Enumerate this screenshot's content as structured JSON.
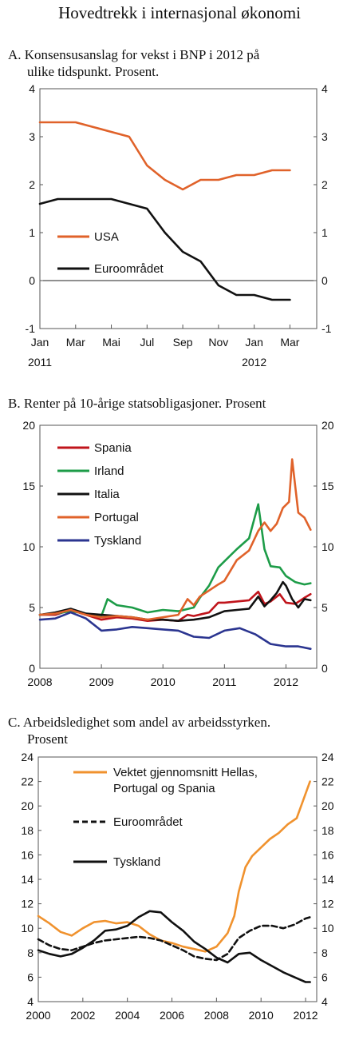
{
  "title": "Hovedtrekk i internasjonal økonomi",
  "chart_data": [
    {
      "id": "A",
      "type": "line",
      "title_lines": [
        "A.  Konsensusanslag for vekst i BNP i 2012 på",
        "ulike tidspunkt. Prosent."
      ],
      "ylim": [
        -1,
        4
      ],
      "yticks": [
        -1,
        0,
        1,
        2,
        3,
        4
      ],
      "x_ticks": [
        {
          "label": "Jan",
          "x": 0
        },
        {
          "label": "Mar",
          "x": 2
        },
        {
          "label": "Mai",
          "x": 4
        },
        {
          "label": "Jul",
          "x": 6
        },
        {
          "label": "Sep",
          "x": 8
        },
        {
          "label": "Nov",
          "x": 10
        },
        {
          "label": "Jan",
          "x": 12
        },
        {
          "label": "Mar",
          "x": 14
        }
      ],
      "x_year_labels": [
        {
          "label": "2011",
          "x": 0
        },
        {
          "label": "2012",
          "x": 12
        }
      ],
      "xlim": [
        0,
        15.5
      ],
      "legend_placement": "left-middle",
      "series": [
        {
          "name": "USA",
          "color": "#e0622a",
          "x": [
            0,
            1,
            2,
            3,
            4,
            5,
            6,
            7,
            8,
            9,
            10,
            11,
            12,
            13,
            14,
            15
          ],
          "values": [
            3.3,
            3.3,
            3.3,
            3.2,
            3.1,
            3.0,
            2.4,
            2.1,
            1.9,
            2.1,
            2.1,
            2.2,
            2.2,
            2.3,
            2.3,
            null
          ]
        },
        {
          "name": "Euroområdet",
          "color": "#111111",
          "x": [
            0,
            1,
            2,
            3,
            4,
            5,
            6,
            7,
            8,
            9,
            10,
            11,
            12,
            13,
            14,
            15
          ],
          "values": [
            1.6,
            1.7,
            1.7,
            1.7,
            1.7,
            1.6,
            1.5,
            1.0,
            0.6,
            0.4,
            -0.1,
            -0.3,
            -0.3,
            -0.4,
            -0.4,
            null
          ]
        }
      ]
    },
    {
      "id": "B",
      "type": "line",
      "title_lines": [
        "B.  Renter på 10-årige statsobligasjoner. Prosent"
      ],
      "ylim": [
        0,
        20
      ],
      "yticks": [
        0,
        5,
        10,
        15,
        20
      ],
      "xlim": [
        2008,
        2012.5
      ],
      "x_ticks": [
        {
          "label": "2008",
          "x": 2008
        },
        {
          "label": "2009",
          "x": 2009
        },
        {
          "label": "2010",
          "x": 2010
        },
        {
          "label": "2011",
          "x": 2011
        },
        {
          "label": "2012",
          "x": 2012
        }
      ],
      "legend_placement": "top-left",
      "series": [
        {
          "name": "Spania",
          "color": "#c0141b",
          "x": [
            2008,
            2008.25,
            2008.5,
            2008.75,
            2009,
            2009.25,
            2009.5,
            2009.75,
            2010,
            2010.25,
            2010.4,
            2010.5,
            2010.75,
            2010.9,
            2011,
            2011.2,
            2011.4,
            2011.55,
            2011.65,
            2011.75,
            2011.9,
            2012,
            2012.15,
            2012.3,
            2012.4
          ],
          "values": [
            4.4,
            4.4,
            4.8,
            4.4,
            4.0,
            4.2,
            4.1,
            3.9,
            4.0,
            3.9,
            4.4,
            4.3,
            4.6,
            5.4,
            5.4,
            5.5,
            5.6,
            6.3,
            5.3,
            5.5,
            6.1,
            5.4,
            5.3,
            5.8,
            6.1
          ]
        },
        {
          "name": "Irland",
          "color": "#1d9c48",
          "x": [
            2008,
            2008.25,
            2008.5,
            2008.75,
            2009,
            2009.1,
            2009.25,
            2009.5,
            2009.75,
            2010,
            2010.25,
            2010.5,
            2010.6,
            2010.75,
            2010.9,
            2011,
            2011.2,
            2011.4,
            2011.55,
            2011.65,
            2011.75,
            2011.9,
            2012,
            2012.15,
            2012.3,
            2012.4
          ],
          "values": [
            4.4,
            4.5,
            4.7,
            4.5,
            4.3,
            5.7,
            5.2,
            5.0,
            4.6,
            4.8,
            4.7,
            5.0,
            5.8,
            6.8,
            8.3,
            8.8,
            9.8,
            10.7,
            13.5,
            9.8,
            8.4,
            8.3,
            7.6,
            7.1,
            6.9,
            7.0
          ]
        },
        {
          "name": "Italia",
          "color": "#111111",
          "x": [
            2008,
            2008.25,
            2008.5,
            2008.75,
            2009,
            2009.25,
            2009.5,
            2009.75,
            2010,
            2010.25,
            2010.5,
            2010.75,
            2011,
            2011.2,
            2011.4,
            2011.55,
            2011.65,
            2011.75,
            2011.85,
            2011.95,
            2012,
            2012.1,
            2012.2,
            2012.3,
            2012.4
          ],
          "values": [
            4.4,
            4.6,
            4.9,
            4.5,
            4.4,
            4.3,
            4.2,
            4.0,
            4.0,
            3.9,
            4.0,
            4.2,
            4.7,
            4.8,
            4.9,
            5.9,
            5.1,
            5.6,
            6.2,
            7.1,
            6.8,
            5.7,
            5.0,
            5.7,
            5.6
          ]
        },
        {
          "name": "Portugal",
          "color": "#e0622a",
          "x": [
            2008,
            2008.25,
            2008.5,
            2008.75,
            2009,
            2009.25,
            2009.5,
            2009.75,
            2010,
            2010.25,
            2010.4,
            2010.5,
            2010.6,
            2010.75,
            2010.9,
            2011,
            2011.2,
            2011.4,
            2011.55,
            2011.65,
            2011.75,
            2011.85,
            2011.95,
            2012.05,
            2012.1,
            2012.2,
            2012.3,
            2012.4
          ],
          "values": [
            4.4,
            4.5,
            4.8,
            4.4,
            4.2,
            4.3,
            4.2,
            4.0,
            4.2,
            4.4,
            5.7,
            5.2,
            5.9,
            6.4,
            6.9,
            7.2,
            8.9,
            9.7,
            11.3,
            12.0,
            11.3,
            11.9,
            13.2,
            13.7,
            17.2,
            12.8,
            12.4,
            11.4
          ]
        },
        {
          "name": "Tyskland",
          "color": "#2b3590",
          "x": [
            2008,
            2008.25,
            2008.5,
            2008.75,
            2009,
            2009.25,
            2009.5,
            2009.75,
            2010,
            2010.25,
            2010.5,
            2010.75,
            2011,
            2011.25,
            2011.5,
            2011.75,
            2012,
            2012.2,
            2012.4
          ],
          "values": [
            4.0,
            4.1,
            4.6,
            4.1,
            3.1,
            3.2,
            3.4,
            3.3,
            3.2,
            3.1,
            2.6,
            2.5,
            3.1,
            3.3,
            2.8,
            2.0,
            1.8,
            1.8,
            1.6
          ]
        }
      ]
    },
    {
      "id": "C",
      "type": "line",
      "title_lines": [
        "C.  Arbeidsledighet som andel av arbeidsstyrken.",
        "Prosent"
      ],
      "ylim": [
        4,
        24
      ],
      "yticks": [
        4,
        6,
        8,
        10,
        12,
        14,
        16,
        18,
        20,
        22,
        24
      ],
      "xlim": [
        2000,
        2012.5
      ],
      "x_ticks": [
        {
          "label": "2000",
          "x": 2000
        },
        {
          "label": "2002",
          "x": 2002
        },
        {
          "label": "2004",
          "x": 2004
        },
        {
          "label": "2006",
          "x": 2006
        },
        {
          "label": "2008",
          "x": 2008
        },
        {
          "label": "2010",
          "x": 2010
        },
        {
          "label": "2012",
          "x": 2012
        }
      ],
      "legend_placement": "top-left",
      "series": [
        {
          "name": "Vektet gjennomsnitt Hellas,",
          "name_line2": "Portugal og Spania",
          "color": "#f0922e",
          "dash": "",
          "x": [
            2000,
            2000.5,
            2001,
            2001.5,
            2002,
            2002.5,
            2003,
            2003.5,
            2004,
            2004.5,
            2005,
            2005.5,
            2006,
            2006.5,
            2007,
            2007.5,
            2008,
            2008.5,
            2008.8,
            2009,
            2009.3,
            2009.6,
            2010,
            2010.4,
            2010.8,
            2011.2,
            2011.6,
            2012,
            2012.2
          ],
          "values": [
            11.0,
            10.4,
            9.7,
            9.4,
            10.0,
            10.5,
            10.6,
            10.4,
            10.5,
            10.2,
            9.5,
            9.0,
            8.8,
            8.5,
            8.3,
            8.1,
            8.5,
            9.6,
            11.0,
            13.0,
            15.0,
            15.9,
            16.6,
            17.3,
            17.8,
            18.5,
            19.0,
            21.0,
            22.0
          ]
        },
        {
          "name": "Euroområdet",
          "color": "#111111",
          "dash": "7,4",
          "x": [
            2000,
            2000.5,
            2001,
            2001.5,
            2002,
            2002.5,
            2003,
            2003.5,
            2004,
            2004.5,
            2005,
            2005.5,
            2006,
            2006.5,
            2007,
            2007.5,
            2008,
            2008.5,
            2009,
            2009.5,
            2010,
            2010.5,
            2011,
            2011.5,
            2012,
            2012.2
          ],
          "values": [
            9.1,
            8.6,
            8.3,
            8.2,
            8.5,
            8.8,
            9.0,
            9.1,
            9.2,
            9.3,
            9.2,
            9.0,
            8.6,
            8.2,
            7.7,
            7.5,
            7.4,
            7.9,
            9.2,
            9.8,
            10.2,
            10.2,
            10.0,
            10.3,
            10.8,
            10.9
          ]
        },
        {
          "name": "Tyskland",
          "color": "#111111",
          "dash": "",
          "x": [
            2000,
            2000.5,
            2001,
            2001.5,
            2002,
            2002.5,
            2003,
            2003.5,
            2004,
            2004.5,
            2005,
            2005.5,
            2006,
            2006.5,
            2007,
            2007.5,
            2008,
            2008.5,
            2009,
            2009.5,
            2010,
            2010.5,
            2011,
            2011.5,
            2012,
            2012.2
          ],
          "values": [
            8.2,
            7.9,
            7.7,
            7.9,
            8.4,
            9.0,
            9.8,
            9.9,
            10.2,
            10.9,
            11.4,
            11.3,
            10.5,
            9.8,
            8.9,
            8.3,
            7.6,
            7.2,
            7.9,
            8.0,
            7.4,
            6.9,
            6.4,
            6.0,
            5.6,
            5.6
          ]
        }
      ]
    }
  ]
}
